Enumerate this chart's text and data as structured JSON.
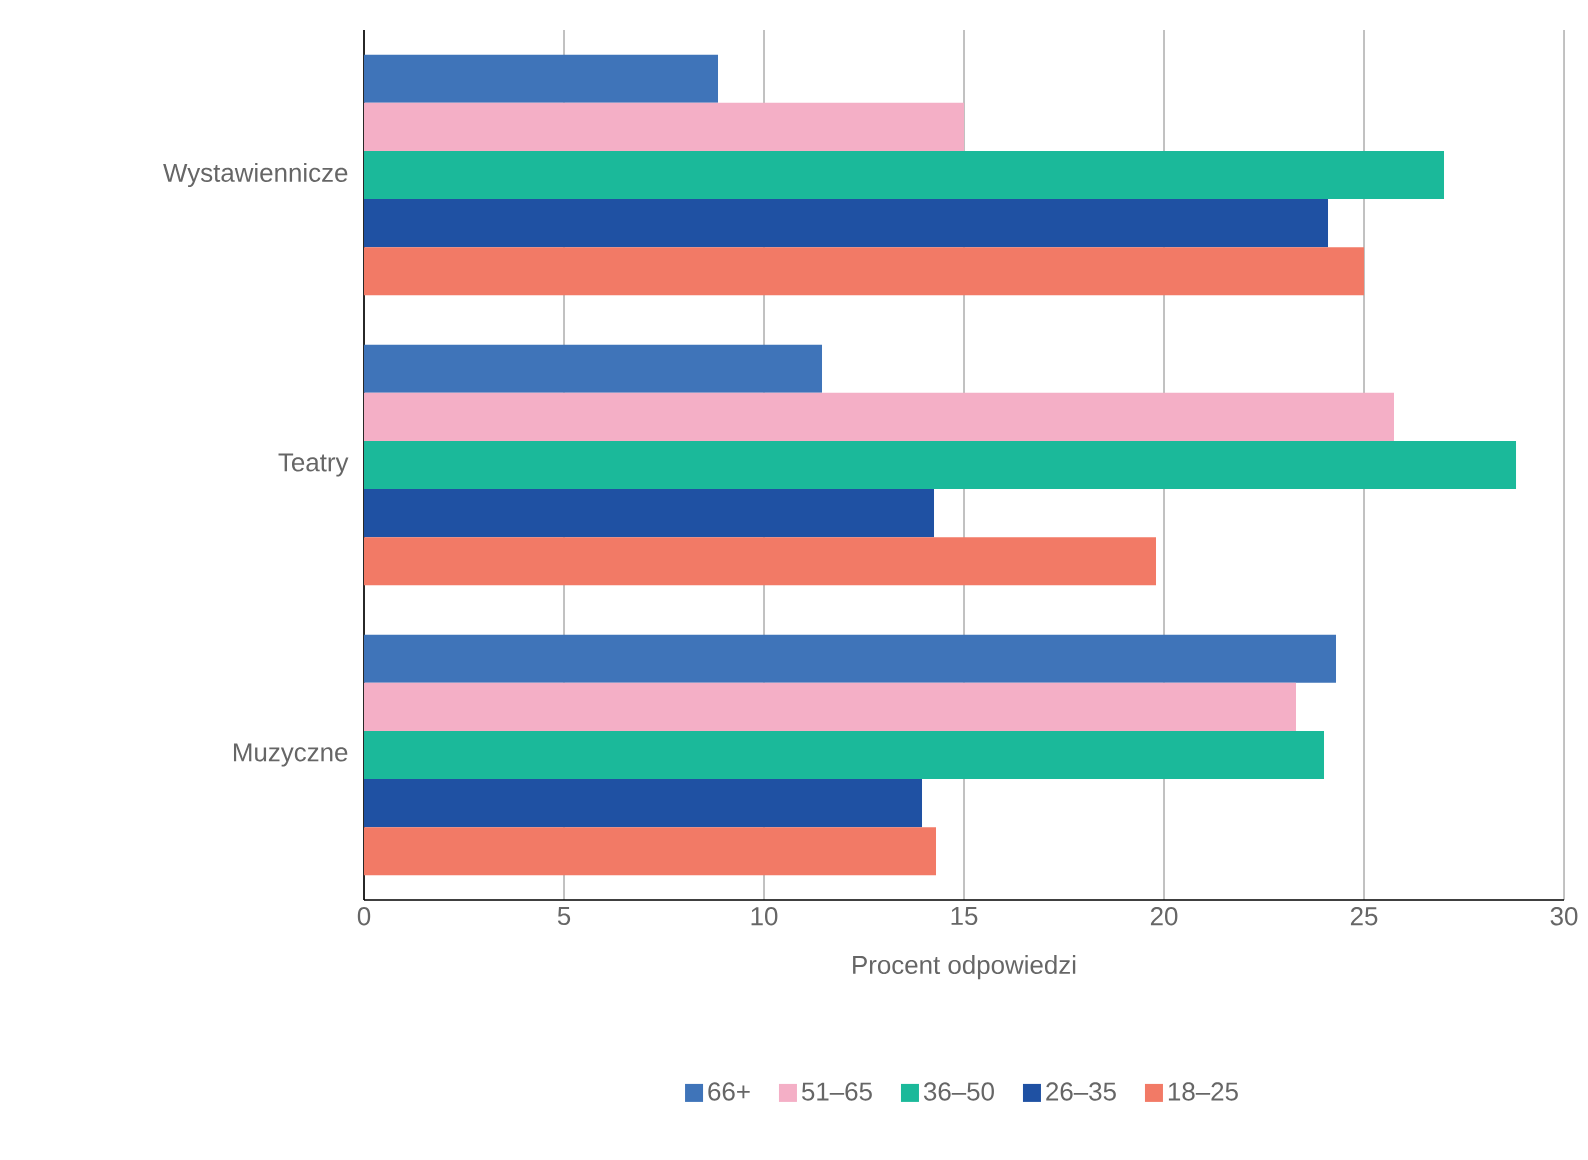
{
  "chart_data": {
    "type": "bar",
    "orientation": "horizontal",
    "categories": [
      "Wystawiennicze",
      "Teatry",
      "Muzyczne"
    ],
    "series": [
      {
        "name": "66+",
        "color": "#3f74b9",
        "values": [
          8.85,
          11.45,
          24.3
        ]
      },
      {
        "name": "51–65",
        "color": "#f4afc6",
        "values": [
          15,
          25.75,
          23.3
        ]
      },
      {
        "name": "36–50",
        "color": "#1bb99a",
        "values": [
          27,
          28.8,
          24
        ]
      },
      {
        "name": "26–35",
        "color": "#1f51a3",
        "values": [
          24.1,
          14.25,
          13.95
        ]
      },
      {
        "name": "18–25",
        "color": "#f27a66",
        "values": [
          25,
          19.8,
          14.3
        ]
      }
    ],
    "xlim": [
      0,
      30
    ],
    "xticks": [
      0,
      5,
      10,
      15,
      20,
      25,
      30
    ],
    "xlabel": "Procent odpowiedzi",
    "grid": "x",
    "legend": "bottom"
  }
}
